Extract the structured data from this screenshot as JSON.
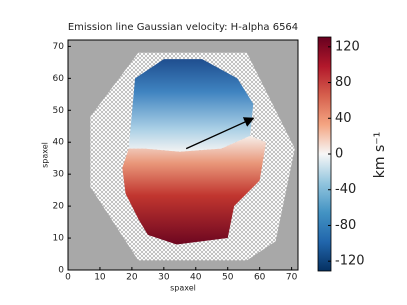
{
  "chart_data": {
    "type": "map",
    "title": "Emission line Gaussian velocity: H-alpha 6564",
    "xlabel": "spaxel",
    "ylabel": "spaxel",
    "xlim": [
      0,
      72
    ],
    "ylim": [
      0,
      72
    ],
    "xticks": [
      0,
      10,
      20,
      30,
      40,
      50,
      60,
      70
    ],
    "yticks": [
      0,
      10,
      20,
      30,
      40,
      50,
      60,
      70
    ],
    "colormap": "RdBu_r",
    "clim": [
      -131,
      131
    ],
    "cticks": [
      -120,
      -80,
      -40,
      0,
      40,
      80,
      120
    ],
    "colorbar_label": "km s⁻¹"
  }
}
